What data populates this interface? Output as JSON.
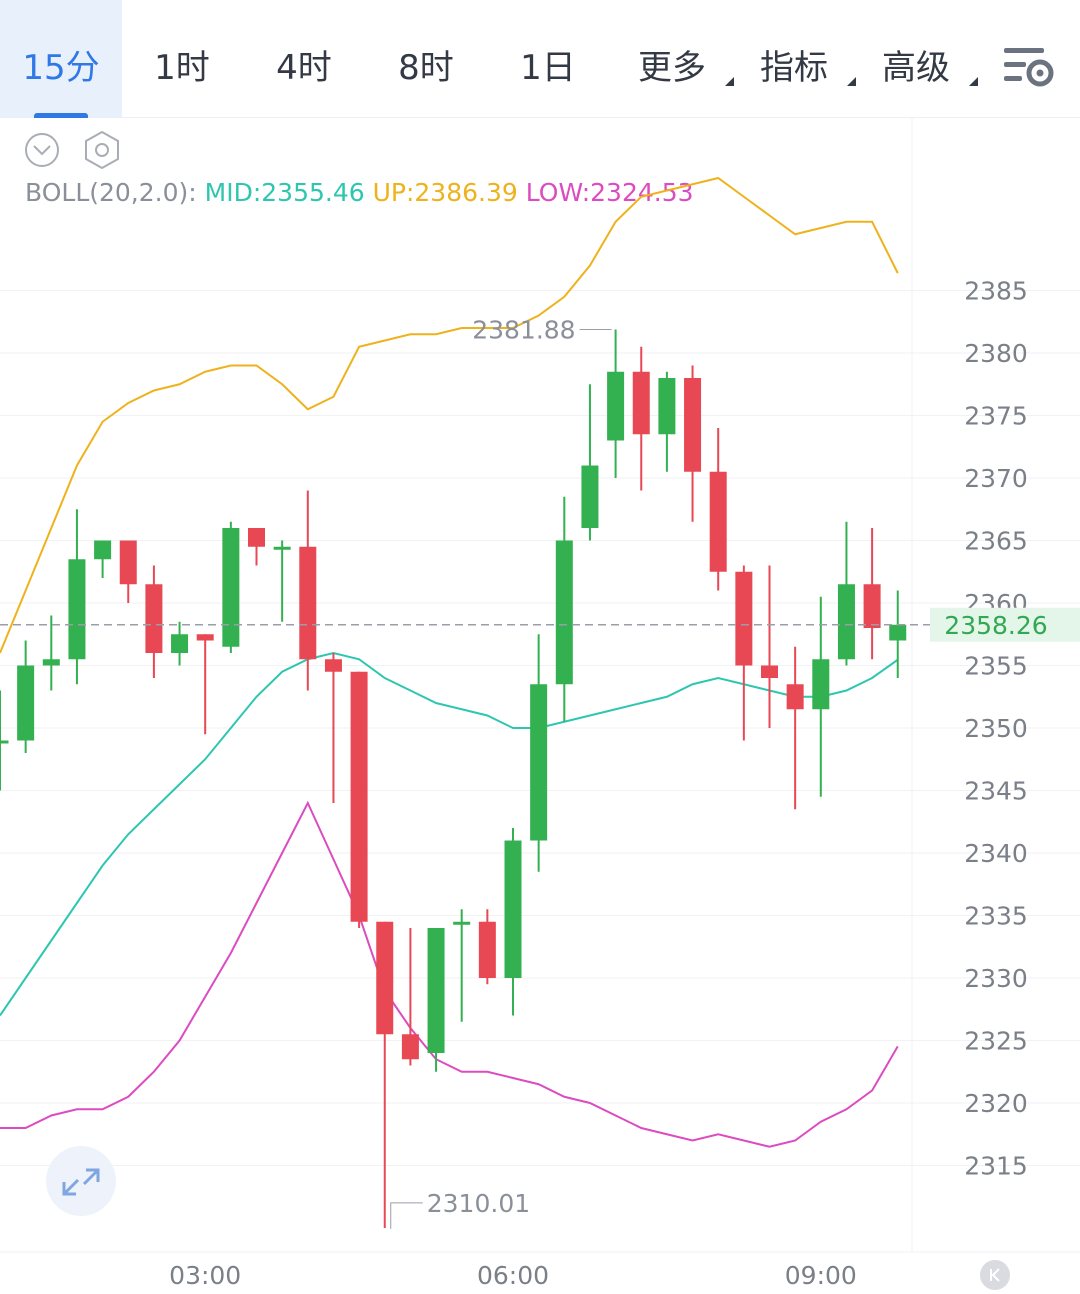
{
  "tabs": [
    {
      "label": "15分",
      "active": true
    },
    {
      "label": "1时",
      "active": false
    },
    {
      "label": "4时",
      "active": false
    },
    {
      "label": "8时",
      "active": false
    },
    {
      "label": "1日",
      "active": false
    },
    {
      "label": "更多",
      "active": false,
      "dropdown": true
    },
    {
      "label": "指标",
      "active": false,
      "dropdown": true
    },
    {
      "label": "高级",
      "active": false,
      "dropdown": true
    }
  ],
  "toolbar": {
    "settings_icon": "chart-settings-icon",
    "collapse_icon": "chevron-down-circle-icon",
    "gear_icon": "hexagon-gear-icon"
  },
  "legend": {
    "name": "BOLL(20,2.0):",
    "mid": "MID:2355.46",
    "up": "UP:2386.39",
    "low": "LOW:2324.53"
  },
  "colors": {
    "up_candle": "#33b050",
    "down_candle": "#e84853",
    "mid": "#2fc6b0",
    "upper": "#eeb21c",
    "lower": "#dc4bc0",
    "accent": "#2f78e6"
  },
  "chart_data": {
    "type": "candlestick",
    "indicator": "BOLL(20,2.0)",
    "ylim": [
      2310,
      2390
    ],
    "y_ticks": [
      2385,
      2380,
      2375,
      2370,
      2365,
      2360,
      2355,
      2350,
      2345,
      2340,
      2335,
      2330,
      2325,
      2320,
      2315
    ],
    "x_ticks": [
      {
        "index": 8,
        "label": "03:00"
      },
      {
        "index": 20,
        "label": "06:00"
      },
      {
        "index": 32,
        "label": "09:00"
      }
    ],
    "current_price": "2358.26",
    "high_marker": {
      "index": 24,
      "label": "2381.88",
      "value": 2381.88
    },
    "low_marker": {
      "index": 15,
      "label": "2310.01",
      "value": 2310.01
    },
    "candles": [
      {
        "o": 2349.0,
        "h": 2353.0,
        "l": 2345.0,
        "c": 2349.0
      },
      {
        "o": 2349.0,
        "h": 2357.0,
        "l": 2348.0,
        "c": 2355.0
      },
      {
        "o": 2355.0,
        "h": 2359.0,
        "l": 2353.0,
        "c": 2355.5
      },
      {
        "o": 2355.5,
        "h": 2367.5,
        "l": 2353.5,
        "c": 2363.5
      },
      {
        "o": 2363.5,
        "h": 2365.0,
        "l": 2362.0,
        "c": 2365.0
      },
      {
        "o": 2365.0,
        "h": 2365.0,
        "l": 2360.0,
        "c": 2361.5
      },
      {
        "o": 2361.5,
        "h": 2363.0,
        "l": 2354.0,
        "c": 2356.0
      },
      {
        "o": 2356.0,
        "h": 2358.5,
        "l": 2355.0,
        "c": 2357.5
      },
      {
        "o": 2357.5,
        "h": 2357.5,
        "l": 2349.5,
        "c": 2357.0
      },
      {
        "o": 2356.5,
        "h": 2366.5,
        "l": 2356.0,
        "c": 2366.0
      },
      {
        "o": 2366.0,
        "h": 2366.0,
        "l": 2363.0,
        "c": 2364.5
      },
      {
        "o": 2364.5,
        "h": 2365.0,
        "l": 2358.5,
        "c": 2364.5
      },
      {
        "o": 2364.5,
        "h": 2369.0,
        "l": 2353.0,
        "c": 2355.5
      },
      {
        "o": 2355.5,
        "h": 2356.0,
        "l": 2344.0,
        "c": 2354.5
      },
      {
        "o": 2354.5,
        "h": 2354.5,
        "l": 2334.0,
        "c": 2334.5
      },
      {
        "o": 2334.5,
        "h": 2334.5,
        "l": 2310.0,
        "c": 2325.5
      },
      {
        "o": 2325.5,
        "h": 2334.0,
        "l": 2323.0,
        "c": 2323.5
      },
      {
        "o": 2324.0,
        "h": 2334.0,
        "l": 2322.5,
        "c": 2334.0
      },
      {
        "o": 2334.5,
        "h": 2335.5,
        "l": 2326.5,
        "c": 2334.5
      },
      {
        "o": 2334.5,
        "h": 2335.5,
        "l": 2329.5,
        "c": 2330.0
      },
      {
        "o": 2330.0,
        "h": 2342.0,
        "l": 2327.0,
        "c": 2341.0
      },
      {
        "o": 2341.0,
        "h": 2357.5,
        "l": 2338.5,
        "c": 2353.5
      },
      {
        "o": 2353.5,
        "h": 2368.5,
        "l": 2350.5,
        "c": 2365.0
      },
      {
        "o": 2366.0,
        "h": 2377.5,
        "l": 2365.0,
        "c": 2371.0
      },
      {
        "o": 2373.0,
        "h": 2381.88,
        "l": 2370.0,
        "c": 2378.5
      },
      {
        "o": 2378.5,
        "h": 2380.5,
        "l": 2369.0,
        "c": 2373.5
      },
      {
        "o": 2373.5,
        "h": 2378.5,
        "l": 2370.5,
        "c": 2378.0
      },
      {
        "o": 2378.0,
        "h": 2379.0,
        "l": 2366.5,
        "c": 2370.5
      },
      {
        "o": 2370.5,
        "h": 2374.0,
        "l": 2361.0,
        "c": 2362.5
      },
      {
        "o": 2362.5,
        "h": 2363.0,
        "l": 2349.0,
        "c": 2355.0
      },
      {
        "o": 2355.0,
        "h": 2363.0,
        "l": 2350.0,
        "c": 2354.0
      },
      {
        "o": 2353.5,
        "h": 2356.5,
        "l": 2343.5,
        "c": 2351.5
      },
      {
        "o": 2351.5,
        "h": 2360.5,
        "l": 2344.5,
        "c": 2355.5
      },
      {
        "o": 2355.5,
        "h": 2366.5,
        "l": 2355.0,
        "c": 2361.5
      },
      {
        "o": 2361.5,
        "h": 2366.0,
        "l": 2355.5,
        "c": 2358.0
      },
      {
        "o": 2357.0,
        "h": 2361.0,
        "l": 2354.0,
        "c": 2358.26
      }
    ],
    "mid": [
      2327.0,
      2330.0,
      2333.0,
      2336.0,
      2339.0,
      2341.5,
      2343.5,
      2345.5,
      2347.5,
      2350.0,
      2352.5,
      2354.5,
      2355.5,
      2356.0,
      2355.5,
      2354.0,
      2353.0,
      2352.0,
      2351.5,
      2351.0,
      2350.0,
      2350.0,
      2350.5,
      2351.0,
      2351.5,
      2352.0,
      2352.5,
      2353.5,
      2354.0,
      2353.5,
      2353.0,
      2352.5,
      2352.5,
      2353.0,
      2354.0,
      2355.46
    ],
    "upper": [
      2356.0,
      2361.0,
      2366.0,
      2371.0,
      2374.5,
      2376.0,
      2377.0,
      2377.5,
      2378.5,
      2379.0,
      2379.0,
      2377.5,
      2375.5,
      2376.5,
      2380.5,
      2381.0,
      2381.5,
      2381.5,
      2382.0,
      2382.0,
      2382.0,
      2383.0,
      2384.5,
      2387.0,
      2390.5,
      2392.5,
      2393.0,
      2393.5,
      2394.0,
      2392.5,
      2391.0,
      2389.5,
      2390.0,
      2390.5,
      2390.5,
      2386.39
    ],
    "lower": [
      2318.0,
      2318.0,
      2319.0,
      2319.5,
      2319.5,
      2320.5,
      2322.5,
      2325.0,
      2328.5,
      2332.0,
      2336.0,
      2340.0,
      2344.0,
      2339.5,
      2335.0,
      2329.0,
      2326.0,
      2323.5,
      2322.5,
      2322.5,
      2322.0,
      2321.5,
      2320.5,
      2320.0,
      2319.0,
      2318.0,
      2317.5,
      2317.0,
      2317.5,
      2317.0,
      2316.5,
      2317.0,
      2318.5,
      2319.5,
      2321.0,
      2324.53
    ]
  }
}
